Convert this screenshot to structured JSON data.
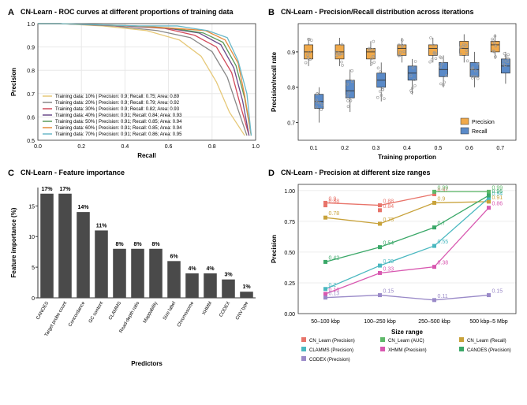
{
  "panelA": {
    "label": "A",
    "title": "CN-Learn - ROC curves at different proportions of training data",
    "xlabel": "Recall",
    "ylabel": "Precision",
    "xlim": [
      0,
      1.0
    ],
    "ylim": [
      0.5,
      1.0
    ],
    "xticks": [
      0.0,
      0.2,
      0.4,
      0.6,
      0.8,
      1.0
    ],
    "yticks": [
      0.5,
      0.6,
      0.7,
      0.8,
      0.9,
      1.0
    ],
    "grid_color": "#e8e8e8",
    "series": [
      {
        "color": "#e6c878",
        "label": "Training data: 10% | Precision: 0.9; Recall: 0.75; Area: 0.89",
        "points": [
          [
            0,
            1
          ],
          [
            0.1,
            1
          ],
          [
            0.3,
            0.99
          ],
          [
            0.5,
            0.97
          ],
          [
            0.65,
            0.93
          ],
          [
            0.75,
            0.86
          ],
          [
            0.82,
            0.75
          ],
          [
            0.88,
            0.62
          ],
          [
            0.95,
            0.52
          ]
        ]
      },
      {
        "color": "#888888",
        "label": "Training data: 20% | Precision: 0.9; Recall: 0.79; Area: 0.92",
        "points": [
          [
            0,
            1
          ],
          [
            0.1,
            1
          ],
          [
            0.35,
            0.99
          ],
          [
            0.55,
            0.97
          ],
          [
            0.7,
            0.94
          ],
          [
            0.8,
            0.88
          ],
          [
            0.87,
            0.77
          ],
          [
            0.92,
            0.63
          ],
          [
            0.96,
            0.52
          ]
        ]
      },
      {
        "color": "#d14a5a",
        "label": "Training data: 30% | Precision: 0.9; Recall: 0.82; Area: 0.93",
        "points": [
          [
            0,
            1
          ],
          [
            0.1,
            1
          ],
          [
            0.4,
            0.99
          ],
          [
            0.58,
            0.98
          ],
          [
            0.72,
            0.95
          ],
          [
            0.82,
            0.9
          ],
          [
            0.89,
            0.79
          ],
          [
            0.93,
            0.65
          ],
          [
            0.97,
            0.52
          ]
        ]
      },
      {
        "color": "#6b4a8a",
        "label": "Training data: 40% | Precision: 0.91; Recall: 0.84; Area: 0.93",
        "points": [
          [
            0,
            1
          ],
          [
            0.1,
            1
          ],
          [
            0.42,
            0.99
          ],
          [
            0.6,
            0.98
          ],
          [
            0.74,
            0.96
          ],
          [
            0.84,
            0.91
          ],
          [
            0.9,
            0.81
          ],
          [
            0.94,
            0.67
          ],
          [
            0.97,
            0.52
          ]
        ]
      },
      {
        "color": "#5a9a5a",
        "label": "Training data: 50% | Precision: 0.91; Recall: 0.85; Area: 0.94",
        "points": [
          [
            0,
            1
          ],
          [
            0.1,
            1
          ],
          [
            0.44,
            0.99
          ],
          [
            0.62,
            0.98
          ],
          [
            0.76,
            0.96
          ],
          [
            0.85,
            0.92
          ],
          [
            0.91,
            0.82
          ],
          [
            0.95,
            0.68
          ],
          [
            0.98,
            0.52
          ]
        ]
      },
      {
        "color": "#e68a3a",
        "label": "Training data: 60% | Precision: 0.91; Recall: 0.85; Area: 0.94",
        "points": [
          [
            0,
            1
          ],
          [
            0.1,
            1
          ],
          [
            0.45,
            0.99
          ],
          [
            0.63,
            0.98
          ],
          [
            0.77,
            0.97
          ],
          [
            0.86,
            0.93
          ],
          [
            0.92,
            0.83
          ],
          [
            0.95,
            0.69
          ],
          [
            0.98,
            0.52
          ]
        ]
      },
      {
        "color": "#6ab8c8",
        "label": "Training data: 70% | Precision: 0.91; Recall: 0.86; Area: 0.95",
        "points": [
          [
            0,
            1
          ],
          [
            0.1,
            1
          ],
          [
            0.46,
            0.99
          ],
          [
            0.64,
            0.99
          ],
          [
            0.78,
            0.97
          ],
          [
            0.87,
            0.94
          ],
          [
            0.92,
            0.84
          ],
          [
            0.96,
            0.7
          ],
          [
            0.98,
            0.52
          ]
        ]
      }
    ]
  },
  "panelB": {
    "label": "B",
    "title": "CN-Learn - Precision/Recall distribution across iterations",
    "xlabel": "Training proportion",
    "ylabel": "Precision/recall rate",
    "xcats": [
      "0.1",
      "0.2",
      "0.3",
      "0.4",
      "0.5",
      "0.6",
      "0.7"
    ],
    "yticks": [
      0.7,
      0.8,
      0.9
    ],
    "ylim": [
      0.65,
      0.98
    ],
    "precision_color": "#f0a94a",
    "recall_color": "#5a8ac8",
    "point_color": "#999999",
    "legend": [
      "Precision",
      "Recall"
    ],
    "boxes": [
      {
        "x": 0,
        "prec": {
          "q1": 0.88,
          "med": 0.9,
          "q3": 0.92,
          "lo": 0.86,
          "hi": 0.94
        },
        "rec": {
          "q1": 0.74,
          "med": 0.76,
          "q3": 0.78,
          "lo": 0.7,
          "hi": 0.8
        }
      },
      {
        "x": 1,
        "prec": {
          "q1": 0.88,
          "med": 0.9,
          "q3": 0.92,
          "lo": 0.86,
          "hi": 0.94
        },
        "rec": {
          "q1": 0.77,
          "med": 0.79,
          "q3": 0.82,
          "lo": 0.73,
          "hi": 0.85
        }
      },
      {
        "x": 2,
        "prec": {
          "q1": 0.88,
          "med": 0.9,
          "q3": 0.91,
          "lo": 0.86,
          "hi": 0.93
        },
        "rec": {
          "q1": 0.8,
          "med": 0.82,
          "q3": 0.84,
          "lo": 0.76,
          "hi": 0.87
        }
      },
      {
        "x": 3,
        "prec": {
          "q1": 0.89,
          "med": 0.91,
          "q3": 0.92,
          "lo": 0.87,
          "hi": 0.94
        },
        "rec": {
          "q1": 0.82,
          "med": 0.84,
          "q3": 0.86,
          "lo": 0.78,
          "hi": 0.88
        }
      },
      {
        "x": 4,
        "prec": {
          "q1": 0.89,
          "med": 0.91,
          "q3": 0.92,
          "lo": 0.87,
          "hi": 0.94
        },
        "rec": {
          "q1": 0.83,
          "med": 0.85,
          "q3": 0.87,
          "lo": 0.8,
          "hi": 0.89
        }
      },
      {
        "x": 5,
        "prec": {
          "q1": 0.89,
          "med": 0.91,
          "q3": 0.93,
          "lo": 0.87,
          "hi": 0.95
        },
        "rec": {
          "q1": 0.83,
          "med": 0.85,
          "q3": 0.87,
          "lo": 0.8,
          "hi": 0.9
        }
      },
      {
        "x": 6,
        "prec": {
          "q1": 0.9,
          "med": 0.92,
          "q3": 0.93,
          "lo": 0.88,
          "hi": 0.95
        },
        "rec": {
          "q1": 0.84,
          "med": 0.86,
          "q3": 0.88,
          "lo": 0.81,
          "hi": 0.9
        }
      }
    ]
  },
  "panelC": {
    "label": "C",
    "title": "CN-Learn - Feature importance",
    "xlabel": "Predictors",
    "ylabel": "Feature importance (%)",
    "bar_color": "#4a4a4a",
    "ylim": [
      0,
      18
    ],
    "yticks": [
      0,
      5,
      10,
      15
    ],
    "bars": [
      {
        "label": "CANOES",
        "value": 17,
        "text": "17%"
      },
      {
        "label": "Target probe count",
        "value": 17,
        "text": "17%"
      },
      {
        "label": "Concordance",
        "value": 14,
        "text": "14%"
      },
      {
        "label": "GC content",
        "value": 11,
        "text": "11%"
      },
      {
        "label": "CLAMMS",
        "value": 8,
        "text": "8%"
      },
      {
        "label": "Read-depth ratio",
        "value": 8,
        "text": "8%"
      },
      {
        "label": "Mappability",
        "value": 8,
        "text": "8%"
      },
      {
        "label": "Size label",
        "value": 6,
        "text": "6%"
      },
      {
        "label": "Chromosome",
        "value": 4,
        "text": "4%"
      },
      {
        "label": "XHMM",
        "value": 4,
        "text": "4%"
      },
      {
        "label": "CODEX",
        "value": 3,
        "text": "3%"
      },
      {
        "label": "CNV type",
        "value": 1,
        "text": "1%"
      }
    ]
  },
  "panelD": {
    "label": "D",
    "title": "CN-Learn - Precision at different size ranges",
    "xlabel": "Size range",
    "ylabel": "Precision",
    "xcats": [
      "50–100 kbp",
      "100–250 kbp",
      "250–500 kbp",
      "500 kbp–5 Mbp"
    ],
    "yticks": [
      0.0,
      0.25,
      0.5,
      0.75,
      1.0
    ],
    "ylim": [
      0,
      1.05
    ],
    "series": [
      {
        "name": "CN_Learn (Precision)",
        "color": "#e8746a",
        "marker": "square",
        "values": [
          0.9,
          0.88,
          0.97,
          null
        ],
        "labels": [
          "0.9",
          "0.88",
          "0.97",
          ""
        ]
      },
      {
        "name": "CN_Learn (AUC)",
        "color": "#5fb86a",
        "marker": "square",
        "values": [
          null,
          null,
          0.99,
          0.99
        ],
        "labels": [
          "",
          "",
          "0.99",
          "0.99"
        ]
      },
      {
        "name": "CN_Learn (Recall)",
        "color": "#c8a23a",
        "marker": "square",
        "values": [
          0.78,
          0.73,
          0.9,
          0.91
        ],
        "labels": [
          "0.78",
          "0.73",
          "0.9",
          "0.91"
        ]
      },
      {
        "name": "CLAMMS (Precision)",
        "color": "#4ab8c0",
        "marker": "square",
        "values": [
          0.2,
          0.39,
          0.55,
          0.94
        ],
        "labels": [
          "0.2",
          "0.39",
          "0.55",
          "0.94"
        ]
      },
      {
        "name": "XHMM (Precision)",
        "color": "#d858b0",
        "marker": "square",
        "values": [
          0.16,
          0.33,
          0.38,
          0.86
        ],
        "labels": [
          "0.16",
          "0.33",
          "0.38",
          "0.86"
        ]
      },
      {
        "name": "CANOES (Precision)",
        "color": "#3aa868",
        "marker": "square",
        "values": [
          0.42,
          0.54,
          0.7,
          0.96
        ],
        "labels": [
          "0.42",
          "0.54",
          "0.7",
          "0.96"
        ]
      },
      {
        "name": "CODEX (Precision)",
        "color": "#9a8ac8",
        "marker": "square",
        "values": [
          0.13,
          0.15,
          0.11,
          0.15
        ],
        "labels": [
          "0.13",
          "0.15",
          "0.11",
          "0.15"
        ]
      },
      {
        "name": "_extra84",
        "color": "#e8746a",
        "marker": "square",
        "values": [
          0.88,
          0.84,
          null,
          null
        ],
        "labels": [
          "0.88",
          "0.84",
          "",
          ""
        ]
      }
    ],
    "legend_order": [
      "CN_Learn (Precision)",
      "CN_Learn (AUC)",
      "CN_Learn (Recall)",
      "CLAMMS (Precision)",
      "XHMM (Precision)",
      "CANOES (Precision)",
      "CODEX (Precision)"
    ]
  }
}
